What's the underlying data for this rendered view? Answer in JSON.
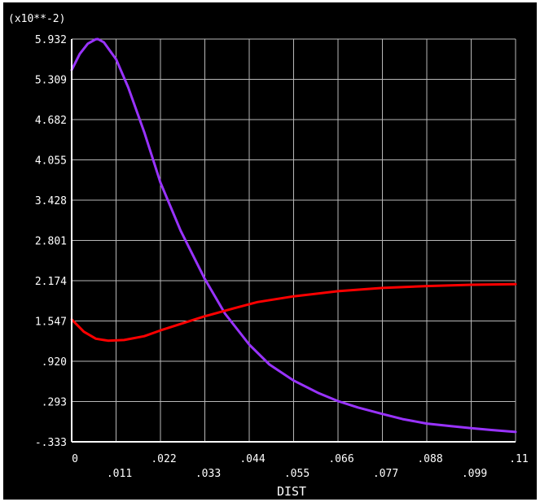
{
  "chart_data": {
    "type": "line",
    "scale_label": "(x10**-2)",
    "xlabel": "DIST",
    "ylabel": "",
    "xlim": [
      0,
      0.11
    ],
    "ylim": [
      -0.333,
      5.932
    ],
    "grid": true,
    "legend": "none",
    "x_ticks_lower": [
      "0",
      ".022",
      ".044",
      ".066",
      ".088",
      ".11"
    ],
    "x_ticks_upper": [
      ".011",
      ".033",
      ".055",
      ".077",
      ".099"
    ],
    "y_ticks": [
      "-.333",
      ".293",
      ".920",
      "1.547",
      "2.174",
      "2.801",
      "3.428",
      "4.055",
      "4.682",
      "5.309",
      "5.932"
    ],
    "series": [
      {
        "color": "#9933ff",
        "x": [
          0,
          0.002,
          0.004,
          0.006,
          0.0065,
          0.008,
          0.011,
          0.014,
          0.018,
          0.022,
          0.027,
          0.033,
          0.038,
          0.044,
          0.049,
          0.055,
          0.061,
          0.066,
          0.071,
          0.077,
          0.082,
          0.088,
          0.094,
          0.099,
          0.104,
          0.11
        ],
        "y": [
          5.45,
          5.7,
          5.86,
          5.93,
          5.932,
          5.88,
          5.62,
          5.18,
          4.48,
          3.7,
          2.95,
          2.2,
          1.66,
          1.18,
          0.87,
          0.62,
          0.43,
          0.3,
          0.2,
          0.1,
          0.02,
          -0.05,
          -0.09,
          -0.12,
          -0.15,
          -0.18
        ]
      },
      {
        "color": "#ff0000",
        "x": [
          0,
          0.003,
          0.006,
          0.009,
          0.013,
          0.018,
          0.022,
          0.028,
          0.033,
          0.04,
          0.046,
          0.055,
          0.066,
          0.077,
          0.088,
          0.099,
          0.11
        ],
        "y": [
          1.57,
          1.38,
          1.27,
          1.24,
          1.25,
          1.31,
          1.4,
          1.52,
          1.62,
          1.74,
          1.84,
          1.93,
          2.01,
          2.06,
          2.09,
          2.11,
          2.12
        ]
      }
    ]
  }
}
